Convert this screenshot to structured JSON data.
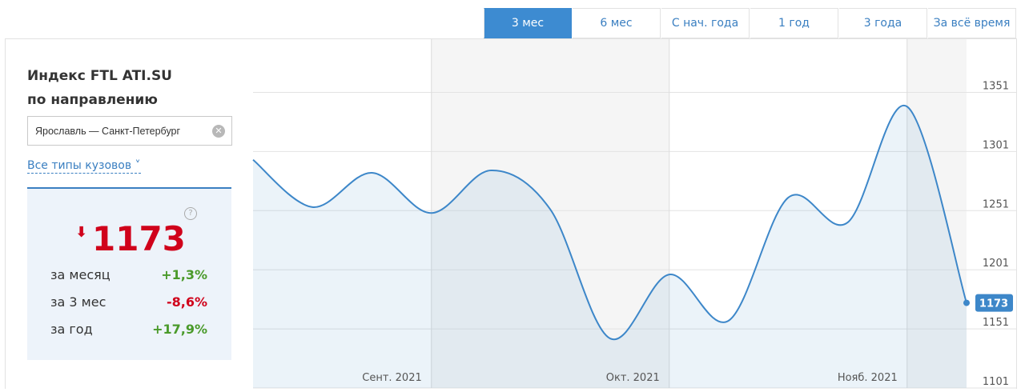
{
  "tabs": [
    "3 мес",
    "6 мес",
    "С нач. года",
    "1 год",
    "3 года",
    "За всё время"
  ],
  "active_tab": 0,
  "sidebar": {
    "title": "Индекс FTL ATI.SU",
    "subtitle": "по направлению",
    "route": "Ярославль — Санкт-Петербург",
    "body_types": "Все типы кузовов",
    "index_value": "1173",
    "help": "?",
    "changes": [
      {
        "label": "за месяц",
        "value": "+1,3%",
        "color": "#4a9a2a"
      },
      {
        "label": "за 3 мес",
        "value": "-8,6%",
        "color": "#d0021b"
      },
      {
        "label": "за год",
        "value": "+17,9%",
        "color": "#4a9a2a"
      }
    ]
  },
  "chart_data": {
    "type": "line",
    "categories": [
      null,
      null,
      null,
      "Сент. 2021",
      null,
      null,
      null,
      "Окт. 2021",
      null,
      null,
      null,
      "Нояб. 2021",
      null
    ],
    "values": [
      1294,
      1254,
      1283,
      1249,
      1285,
      1252,
      1143,
      1197,
      1158,
      1262,
      1241,
      1339,
      1173
    ],
    "color": "#3d87c9",
    "ylim": [
      1101,
      1396
    ],
    "yticks": [
      1101,
      1151,
      1201,
      1251,
      1301,
      1351
    ],
    "grid": true
  }
}
